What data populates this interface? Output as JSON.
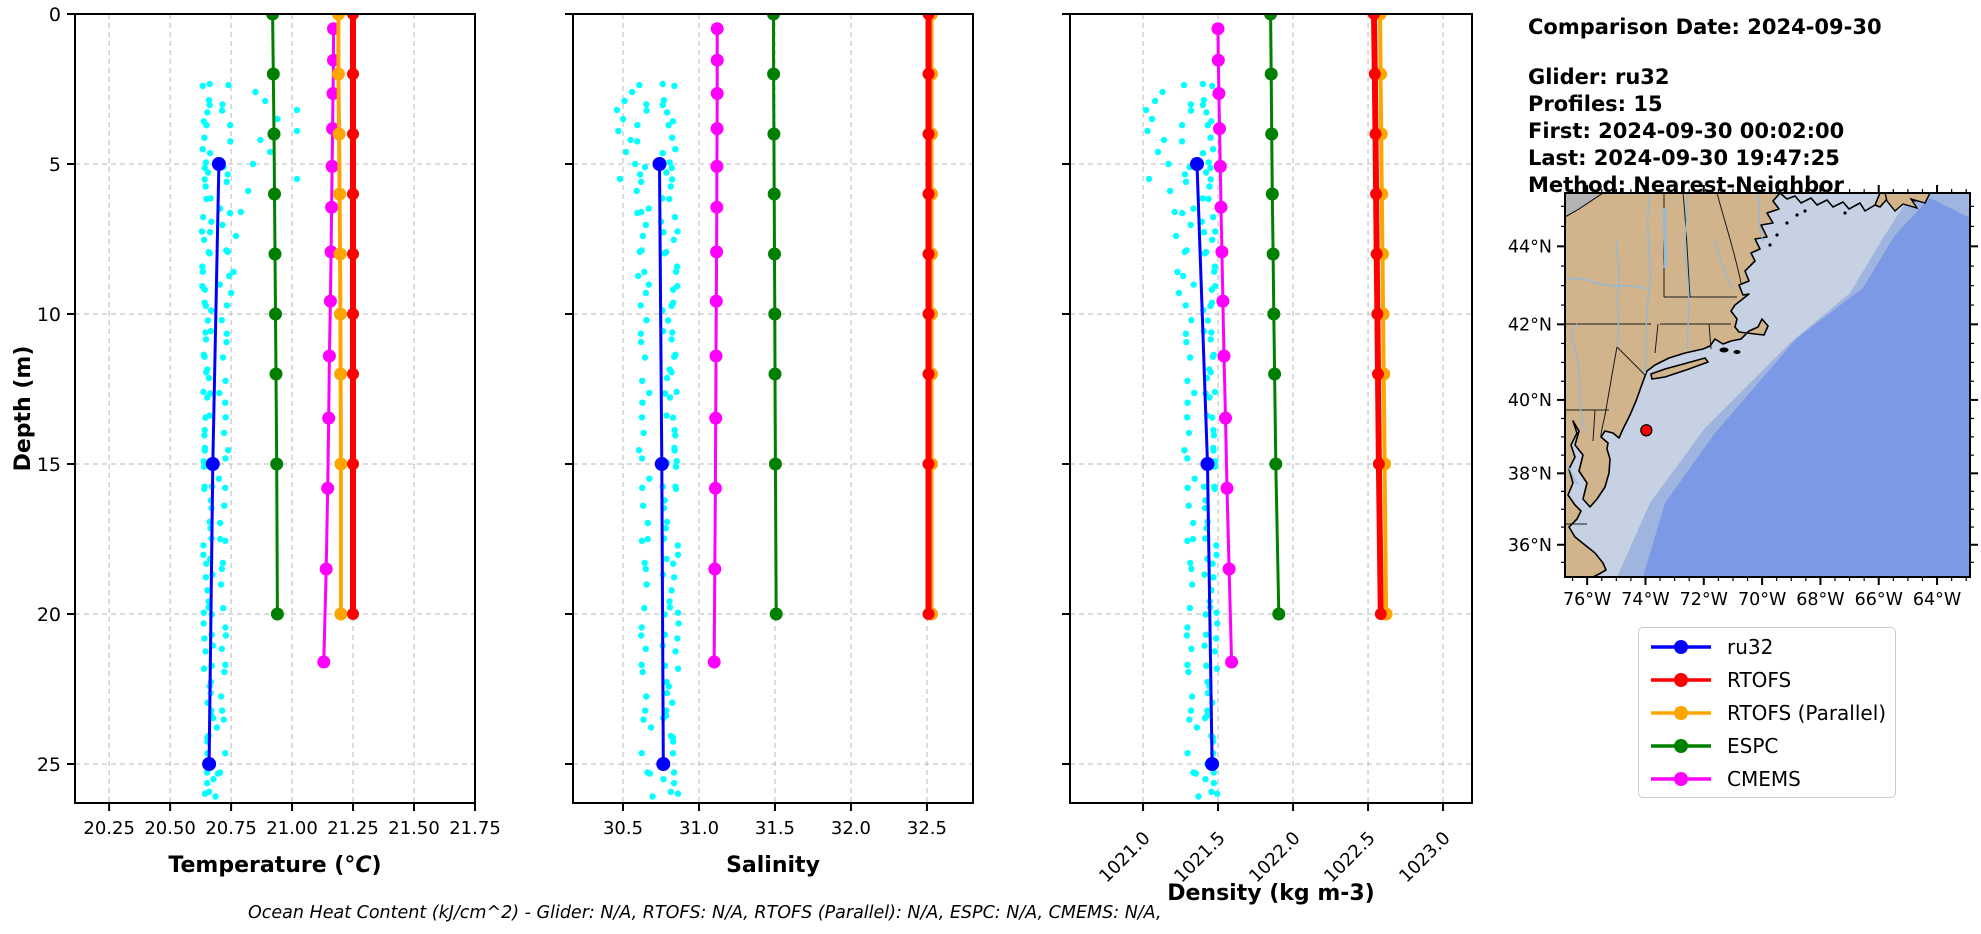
{
  "info": {
    "date": "Comparison Date: 2024-09-30",
    "glider": "Glider: ru32",
    "profiles": "Profiles: 15",
    "first": "First: 2024-09-30 00:02:00",
    "last": "Last: 2024-09-30 19:47:25",
    "method": "Method: Nearest-Neighbor"
  },
  "footer": "Ocean Heat Content (kJ/cm^2) - Glider: N/A,  RTOFS: N/A,  RTOFS (Parallel): N/A,  ESPC: N/A,  CMEMS: N/A,",
  "legend": {
    "items": [
      {
        "label": "ru32",
        "color": "#0000FF"
      },
      {
        "label": "RTOFS",
        "color": "#FF0000"
      },
      {
        "label": "RTOFS (Parallel)",
        "color": "#FFA500"
      },
      {
        "label": "ESPC",
        "color": "#008000"
      },
      {
        "label": "CMEMS",
        "color": "#FF00FF"
      }
    ]
  },
  "chart_data": {
    "type": "scatter",
    "ylabel": "Depth (m)",
    "ylim": [
      0,
      26.3
    ],
    "yticks": [
      0,
      5,
      10,
      15,
      20,
      25
    ],
    "grid": true,
    "scatter_legend": "glider raw points",
    "series_depths": {
      "ru32": [
        5,
        15,
        25
      ],
      "RTOFS": [
        0,
        2,
        4,
        6,
        8,
        10,
        12,
        15,
        20
      ],
      "RTOFS (Parallel)": [
        0,
        2,
        4,
        6,
        8,
        10,
        12,
        15,
        20
      ],
      "ESPC": [
        0,
        2,
        4,
        6,
        8,
        10,
        12,
        15,
        20
      ],
      "CMEMS": [
        0.49,
        1.54,
        2.65,
        3.82,
        5.08,
        6.44,
        7.93,
        9.57,
        11.4,
        13.47,
        15.81,
        18.5,
        21.6
      ]
    },
    "plots": [
      {
        "id": "temperature",
        "xlabel": "Temperature (°C)",
        "xlim": [
          20.11,
          21.75
        ],
        "xticks": [
          20.25,
          20.5,
          20.75,
          21.0,
          21.25,
          21.5,
          21.75
        ],
        "xtick_labels": [
          "20.25",
          "20.50",
          "20.75",
          "21.00",
          "21.25",
          "21.50",
          "21.75"
        ],
        "series_values": {
          "ru32": [
            20.7,
            20.675,
            20.66
          ],
          "RTOFS": [
            21.25,
            21.25,
            21.25,
            21.25,
            21.25,
            21.25,
            21.25,
            21.25,
            21.25
          ],
          "RTOFS (Parallel)": [
            21.19,
            21.19,
            21.193,
            21.195,
            21.197,
            21.198,
            21.199,
            21.2,
            21.2
          ],
          "ESPC": [
            20.92,
            20.923,
            20.926,
            20.928,
            20.93,
            20.932,
            20.934,
            20.937,
            20.94
          ],
          "CMEMS": [
            21.17,
            21.17,
            21.168,
            21.166,
            21.164,
            21.162,
            21.16,
            21.157,
            21.153,
            21.15,
            21.146,
            21.14,
            21.13
          ]
        }
      },
      {
        "id": "salinity",
        "xlabel": "Salinity",
        "xlim": [
          30.171,
          32.803
        ],
        "xticks": [
          30.5,
          31.0,
          31.5,
          32.0,
          32.5
        ],
        "xtick_labels": [
          "30.5",
          "31.0",
          "31.5",
          "32.0",
          "32.5"
        ],
        "series_values": {
          "ru32": [
            30.74,
            30.755,
            30.765
          ],
          "RTOFS": [
            32.51,
            32.51,
            32.51,
            32.51,
            32.51,
            32.51,
            32.51,
            32.51,
            32.51
          ],
          "RTOFS (Parallel)": [
            32.53,
            32.53,
            32.53,
            32.53,
            32.53,
            32.53,
            32.53,
            32.53,
            32.53
          ],
          "ESPC": [
            31.49,
            31.491,
            31.493,
            31.495,
            31.497,
            31.499,
            31.5,
            31.503,
            31.508
          ],
          "CMEMS": [
            31.12,
            31.12,
            31.12,
            31.119,
            31.118,
            31.117,
            31.116,
            31.114,
            31.112,
            31.11,
            31.108,
            31.104,
            31.1
          ]
        }
      },
      {
        "id": "density",
        "xlabel": "Density (kg m-3)",
        "xlim": [
          1020.513,
          1023.193
        ],
        "xticks": [
          1021.0,
          1021.5,
          1022.0,
          1022.5,
          1023.0
        ],
        "xtick_labels": [
          "1021.0",
          "1021.5",
          "1022.0",
          "1022.5",
          "1023.0"
        ],
        "rotate_xticks": true,
        "series_values": {
          "ru32": [
            1021.36,
            1021.43,
            1021.46
          ],
          "RTOFS": [
            1022.54,
            1022.545,
            1022.55,
            1022.554,
            1022.558,
            1022.562,
            1022.566,
            1022.572,
            1022.585
          ],
          "RTOFS (Parallel)": [
            1022.58,
            1022.584,
            1022.588,
            1022.592,
            1022.596,
            1022.6,
            1022.604,
            1022.61,
            1022.62
          ],
          "ESPC": [
            1021.85,
            1021.854,
            1021.858,
            1021.862,
            1021.867,
            1021.872,
            1021.877,
            1021.885,
            1021.905
          ],
          "CMEMS": [
            1021.5,
            1021.502,
            1021.506,
            1021.51,
            1021.515,
            1021.52,
            1021.526,
            1021.532,
            1021.54,
            1021.55,
            1021.56,
            1021.574,
            1021.59
          ]
        }
      }
    ],
    "glider_scatter": {
      "color": "#00FFFF",
      "bands": [
        {
          "count": 95,
          "depth": [
            2.3,
            26.2
          ],
          "depth_jitter": 0.25,
          "temperature": {
            "base": [
              20.648,
              20.658
            ],
            "spread": 0.02
          },
          "salinity": {
            "base": [
              30.8,
              30.82
            ],
            "spread": -0.055
          },
          "density": {
            "base": [
              1021.43,
              1021.46
            ],
            "spread": -0.045
          }
        },
        {
          "count": 50,
          "depth": [
            2.4,
            26.0
          ],
          "depth_jitter": 0.3,
          "temperature": {
            "base": [
              20.73,
              20.705
            ],
            "spread": 0.022
          },
          "salinity": {
            "base": [
              30.625,
              30.66
            ],
            "spread": -0.04
          },
          "density": {
            "base": [
              1021.29,
              1021.335
            ],
            "spread": -0.04
          }
        }
      ],
      "outliers": {
        "depths": [
          2.6,
          2.9,
          3.2,
          3.5,
          3.9,
          4.2,
          4.6,
          5.0,
          5.5,
          5.9,
          6.6,
          7.4,
          8.6,
          9.3
        ],
        "temperature": [
          20.85,
          20.89,
          21.02,
          20.94,
          21.02,
          20.87,
          20.91,
          20.84,
          21.02,
          20.82,
          20.79,
          20.77,
          20.76,
          20.75
        ],
        "salinity": [
          30.56,
          30.51,
          30.46,
          30.5,
          30.47,
          30.55,
          30.52,
          30.58,
          30.48,
          30.59,
          30.62,
          30.63,
          30.64,
          30.65
        ],
        "density": [
          1021.13,
          1021.08,
          1021.02,
          1021.06,
          1021.03,
          1021.14,
          1021.1,
          1021.17,
          1021.04,
          1021.18,
          1021.21,
          1021.22,
          1021.23,
          1021.24
        ]
      }
    }
  },
  "map": {
    "extent": {
      "lon": [
        -76.76,
        -62.87
      ],
      "lat": [
        35.08,
        45.33
      ]
    },
    "lon_ticks": [
      {
        "label": "76°W",
        "lon": -76
      },
      {
        "label": "74°W",
        "lon": -74
      },
      {
        "label": "72°W",
        "lon": -72
      },
      {
        "label": "70°W",
        "lon": -70
      },
      {
        "label": "68°W",
        "lon": -68
      },
      {
        "label": "66°W",
        "lon": -66
      },
      {
        "label": "64°W",
        "lon": -64
      }
    ],
    "lat_ticks": [
      {
        "label": "44°N",
        "lat": 44
      },
      {
        "label": "42°N",
        "lat": 42
      },
      {
        "label": "40°N",
        "lat": 40
      },
      {
        "label": "38°N",
        "lat": 38
      },
      {
        "label": "36°N",
        "lat": 36
      }
    ],
    "marker": {
      "lon": -73.97,
      "lat": 39.18,
      "color": "#FF0000"
    }
  }
}
